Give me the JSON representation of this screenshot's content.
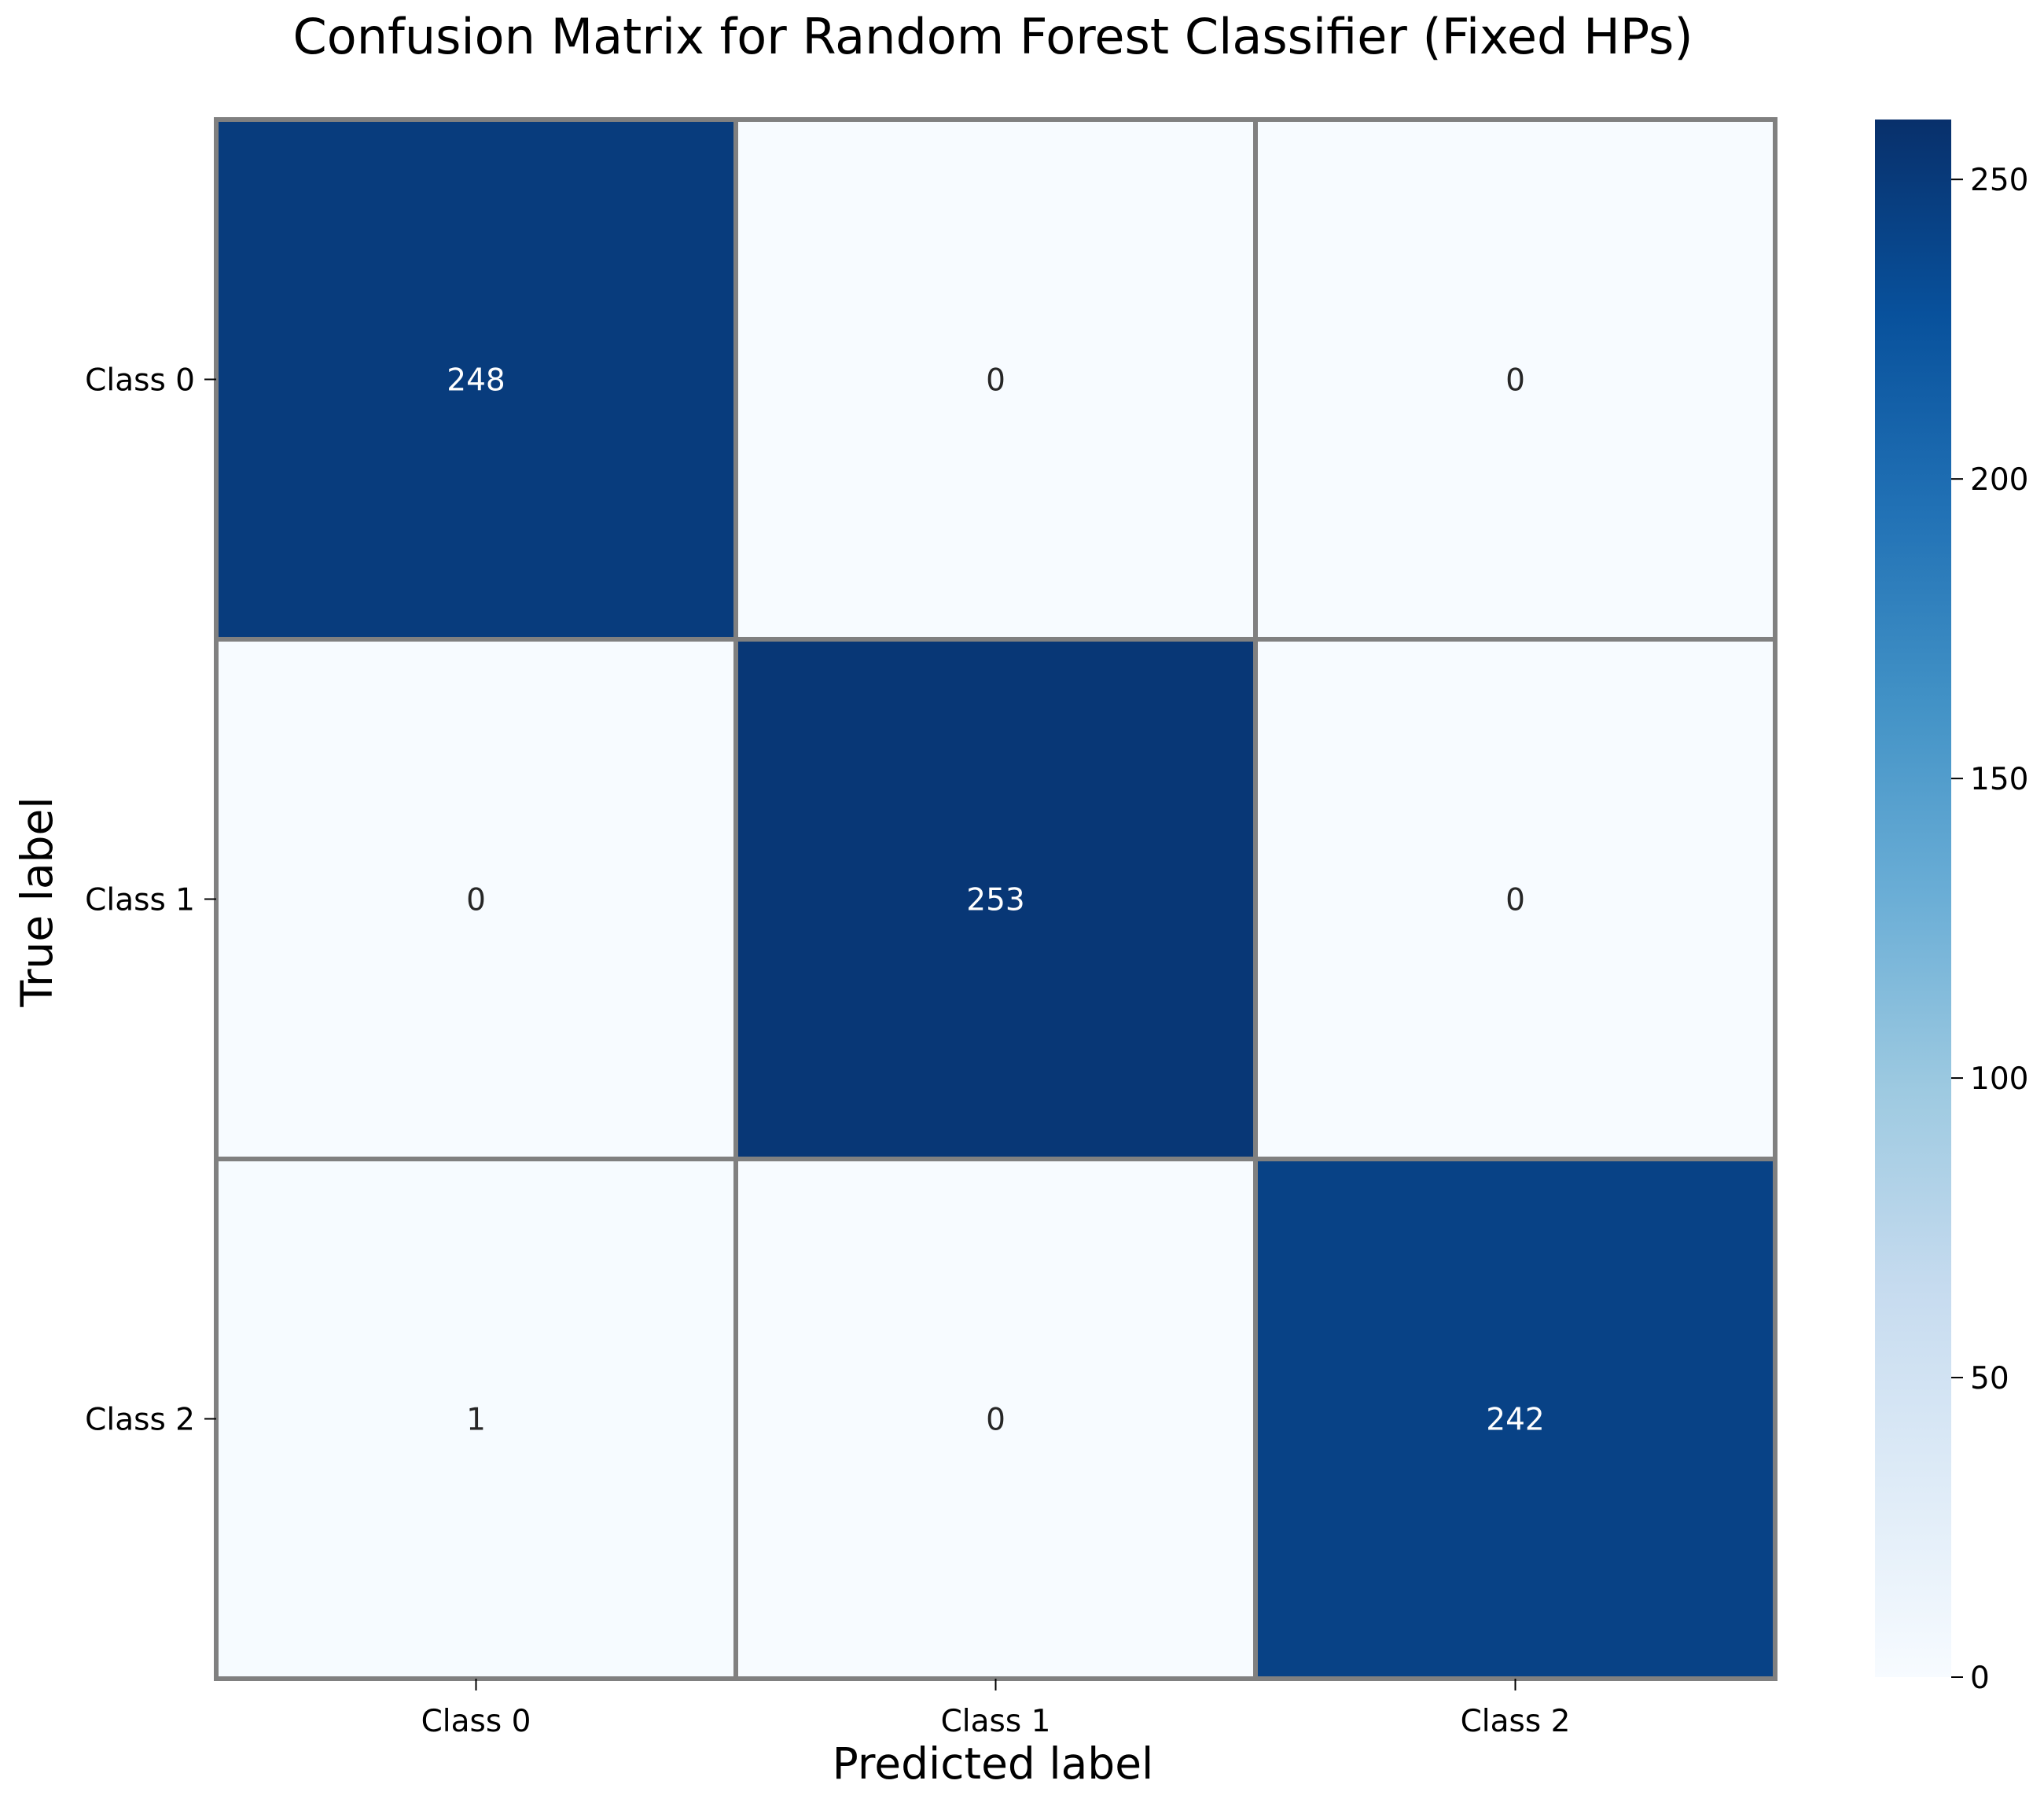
{
  "chart_data": {
    "type": "heatmap",
    "title": "Confusion Matrix for Random Forest Classifier (Fixed HPs)",
    "xlabel": "Predicted label",
    "ylabel": "True label",
    "x_categories": [
      "Class 0",
      "Class 1",
      "Class 2"
    ],
    "y_categories": [
      "Class 0",
      "Class 1",
      "Class 2"
    ],
    "values": [
      [
        248,
        0,
        0
      ],
      [
        0,
        253,
        0
      ],
      [
        1,
        0,
        242
      ]
    ],
    "colormap": "Blues",
    "colorbar": {
      "range": [
        0,
        260
      ],
      "ticks": [
        0,
        50,
        100,
        150,
        200,
        250
      ],
      "tick_labels": [
        "0",
        "50",
        "100",
        "150",
        "200",
        "250"
      ]
    },
    "cell_border_color": "#808080",
    "annotation_color_dark_cell": "#ffffff",
    "annotation_color_light_cell": "#262626"
  }
}
